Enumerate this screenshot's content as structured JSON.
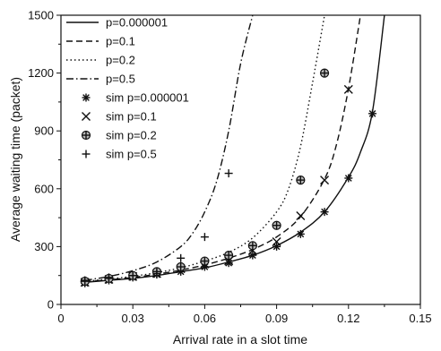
{
  "chart_data": {
    "type": "line",
    "title": "",
    "xlabel": "Arrival rate in a slot time",
    "ylabel": "Average waiting time (packet)",
    "xlim": [
      0,
      0.15
    ],
    "ylim": [
      0,
      1500
    ],
    "x_ticks": [
      "0",
      "0.03",
      "0.06",
      "0.09",
      "0.12",
      "0.15"
    ],
    "y_ticks": [
      "0",
      "300",
      "600",
      "900",
      "1200",
      "1500"
    ],
    "grid": false,
    "legend_position": "top-left",
    "series": [
      {
        "name": "p=0.000001",
        "kind": "line",
        "dash": "solid",
        "x": [
          0.01,
          0.02,
          0.03,
          0.04,
          0.05,
          0.06,
          0.07,
          0.08,
          0.09,
          0.1,
          0.11,
          0.12,
          0.125,
          0.13,
          0.135
        ],
        "y": [
          115,
          125,
          135,
          150,
          170,
          190,
          220,
          255,
          305,
          375,
          480,
          660,
          790,
          1000,
          1500
        ]
      },
      {
        "name": "p=0.1",
        "kind": "line",
        "dash": "dashed",
        "x": [
          0.01,
          0.02,
          0.03,
          0.04,
          0.05,
          0.06,
          0.07,
          0.08,
          0.09,
          0.1,
          0.11,
          0.115,
          0.12,
          0.125
        ],
        "y": [
          118,
          128,
          140,
          157,
          178,
          205,
          240,
          285,
          350,
          455,
          650,
          830,
          1120,
          1500
        ]
      },
      {
        "name": "p=0.2",
        "kind": "line",
        "dash": "dotted",
        "x": [
          0.01,
          0.02,
          0.03,
          0.04,
          0.05,
          0.06,
          0.07,
          0.08,
          0.09,
          0.095,
          0.1,
          0.105,
          0.11
        ],
        "y": [
          120,
          132,
          146,
          165,
          190,
          225,
          270,
          345,
          480,
          600,
          820,
          1150,
          1500
        ]
      },
      {
        "name": "p=0.5",
        "kind": "line",
        "dash": "dashdot",
        "x": [
          0.01,
          0.02,
          0.03,
          0.04,
          0.05,
          0.055,
          0.06,
          0.065,
          0.07,
          0.075,
          0.08
        ],
        "y": [
          125,
          145,
          175,
          220,
          300,
          370,
          480,
          640,
          900,
          1250,
          1500
        ]
      },
      {
        "name": "sim p=0.000001",
        "kind": "marker",
        "marker": "asterisk",
        "x": [
          0.01,
          0.02,
          0.03,
          0.04,
          0.05,
          0.06,
          0.07,
          0.08,
          0.09,
          0.1,
          0.11,
          0.12,
          0.13
        ],
        "y": [
          110,
          125,
          140,
          155,
          170,
          195,
          215,
          255,
          300,
          365,
          480,
          655,
          990
        ]
      },
      {
        "name": "sim p=0.1",
        "kind": "marker",
        "marker": "x",
        "x": [
          0.01,
          0.02,
          0.03,
          0.04,
          0.05,
          0.06,
          0.07,
          0.08,
          0.09,
          0.1,
          0.11,
          0.12
        ],
        "y": [
          115,
          130,
          145,
          160,
          185,
          210,
          225,
          280,
          325,
          460,
          645,
          1115
        ]
      },
      {
        "name": "sim p=0.2",
        "kind": "marker",
        "marker": "circle-plus",
        "x": [
          0.01,
          0.02,
          0.03,
          0.04,
          0.05,
          0.06,
          0.07,
          0.08,
          0.09,
          0.1,
          0.11
        ],
        "y": [
          120,
          135,
          150,
          170,
          195,
          225,
          255,
          305,
          410,
          645,
          1200
        ]
      },
      {
        "name": "sim p=0.5",
        "kind": "marker",
        "marker": "plus",
        "x": [
          0.01,
          0.02,
          0.03,
          0.04,
          0.05,
          0.06,
          0.07
        ],
        "y": [
          125,
          140,
          150,
          160,
          240,
          350,
          680
        ]
      }
    ]
  }
}
